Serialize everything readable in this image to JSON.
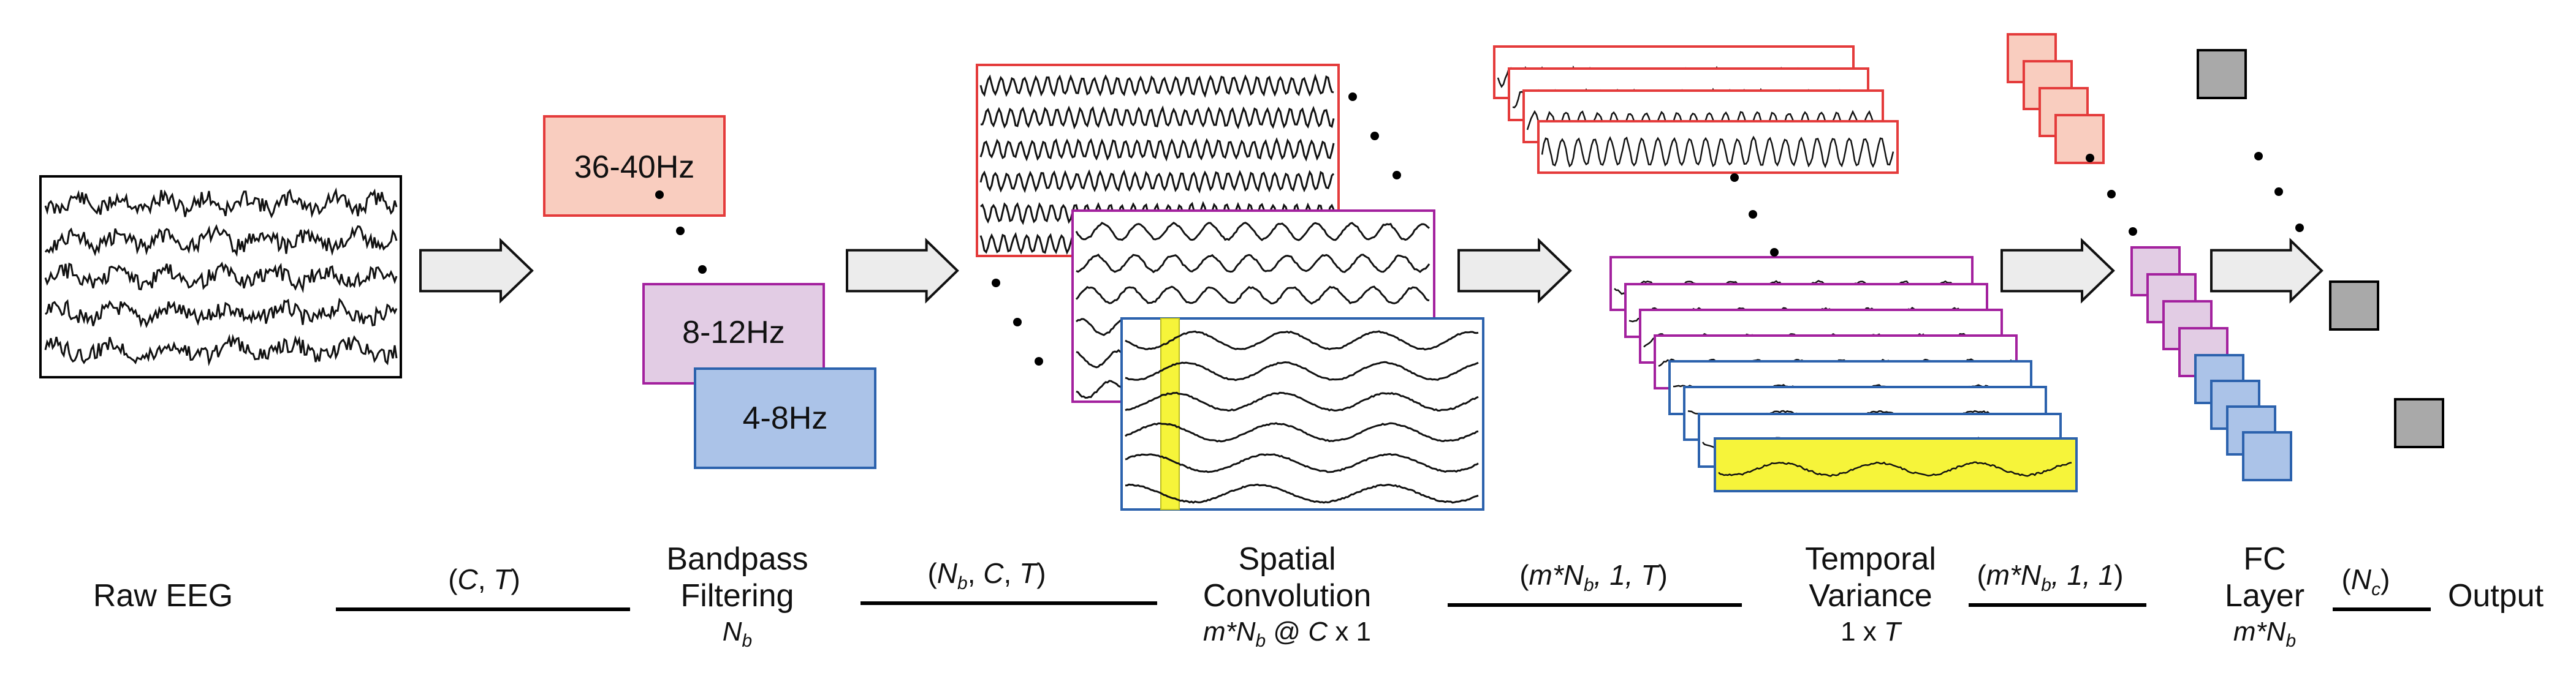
{
  "colors": {
    "red_fill": "#f9cdbf",
    "red_border": "#e43b3b",
    "purple_fill": "#e2cce4",
    "purple_border": "#a3219e",
    "blue_fill": "#abc3e8",
    "blue_border": "#2c62ad",
    "yellow": "#f6f43a",
    "gray": "#a9a9a9",
    "arrow_fill": "#ececec"
  },
  "bands": {
    "high": "36-40Hz",
    "alpha": "8-12Hz",
    "theta": "4-8Hz"
  },
  "stages": {
    "raw": "Raw EEG",
    "bandpass": {
      "line1": "Bandpass",
      "line2": "Filtering",
      "param_main": "N",
      "param_sub": "b"
    },
    "spatial": {
      "line1": "Spatial",
      "line2": "Convolution",
      "param_a": "m*N",
      "param_a_sub": "b",
      "param_b": " @ ",
      "param_c": "C",
      "param_d": " x 1"
    },
    "temporal": {
      "line1": "Temporal",
      "line2": "Variance",
      "param_a": "1 x ",
      "param_b": "T"
    },
    "fc": {
      "line1": "FC",
      "line2": "Layer",
      "param_main": "m*N",
      "param_sub": "b"
    },
    "output": "Output"
  },
  "dims": {
    "d1": {
      "open": "(",
      "a": "C",
      "sep": ", ",
      "b": "T",
      "close": ")"
    },
    "d2": {
      "open": "(",
      "a": "N",
      "a_sub": "b",
      "sep1": ", ",
      "b": "C",
      "sep2": ", ",
      "c": "T",
      "close": ")"
    },
    "d3": {
      "open": "(",
      "a": "m*N",
      "a_sub": "b",
      "rest": ", 1, ",
      "c": "T",
      "close": ")"
    },
    "d4": {
      "open": "(",
      "a": "m*N",
      "a_sub": "b",
      "rest": ", 1, 1",
      "close": ")"
    },
    "d5": {
      "open": "(",
      "a": "N",
      "a_sub": "c",
      "close": ")"
    }
  }
}
